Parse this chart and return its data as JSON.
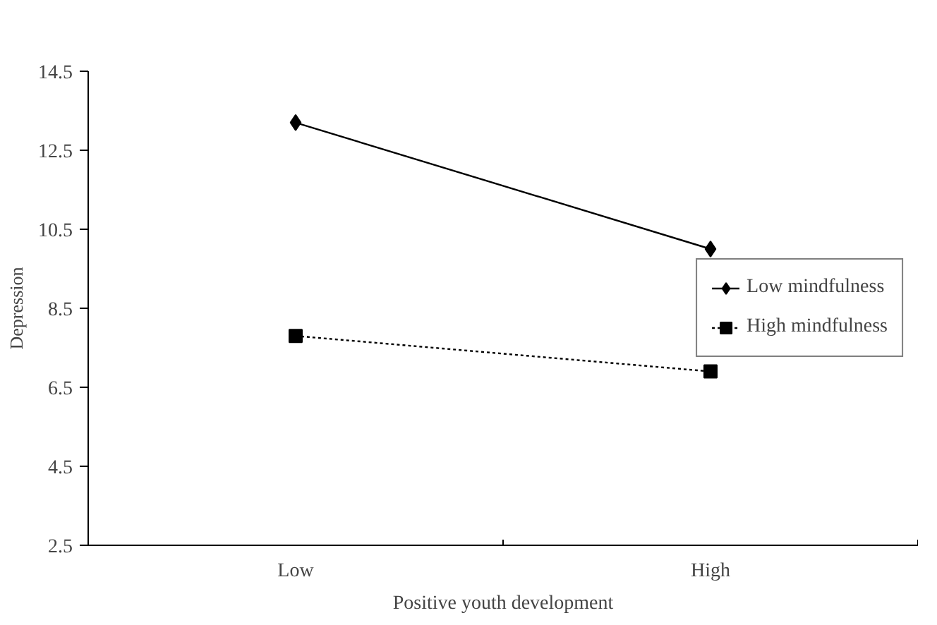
{
  "chart_data": {
    "type": "line",
    "xlabel": "Positive youth development",
    "ylabel": "Depression",
    "categories": [
      "Low",
      "High"
    ],
    "series": [
      {
        "name": "Low mindfulness",
        "color": "#000000",
        "values": [
          13.2,
          10.0
        ],
        "marker": "diamond",
        "line_style": "solid"
      },
      {
        "name": "High mindfulness",
        "color": "#000000",
        "values": [
          7.8,
          6.9
        ],
        "marker": "square",
        "line_style": "dotted"
      }
    ],
    "ylim": [
      2.5,
      14.5
    ],
    "yticks": [
      2.5,
      4.5,
      6.5,
      8.5,
      10.5,
      12.5,
      14.5
    ],
    "grid": false,
    "legend": "right"
  }
}
